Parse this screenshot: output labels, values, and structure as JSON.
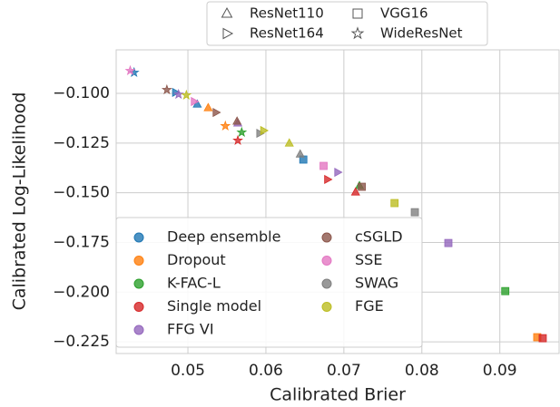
{
  "chart_data": {
    "type": "scatter",
    "xlabel": "Calibrated Brier",
    "ylabel": "Calibrated Log-Likelihood",
    "xlim": [
      0.0408,
      0.0976
    ],
    "ylim": [
      -0.2309,
      -0.0781
    ],
    "xticks": [
      0.05,
      0.06,
      0.07,
      0.08,
      0.09
    ],
    "yticks": [
      {
        "value": -0.1,
        "label": "−0.100"
      },
      {
        "value": -0.125,
        "label": "−0.125"
      },
      {
        "value": -0.15,
        "label": "−0.150"
      },
      {
        "value": -0.175,
        "label": "−0.175"
      },
      {
        "value": -0.2,
        "label": "−0.200"
      },
      {
        "value": -0.225,
        "label": "−0.225"
      }
    ],
    "grid": true,
    "legend": "lower left",
    "shape_legend": [
      {
        "name": "ResNet110",
        "shape": "triangle-up"
      },
      {
        "name": "VGG16",
        "shape": "square"
      },
      {
        "name": "ResNet164",
        "shape": "triangle-right"
      },
      {
        "name": "WideResNet",
        "shape": "star"
      }
    ],
    "series": [
      {
        "name": "Deep ensemble",
        "color": "#1f77b4",
        "x": [
          0.0431,
          0.0484,
          0.0512,
          0.0648
        ],
        "y": [
          -0.0895,
          -0.0995,
          -0.1055,
          -0.1333
        ],
        "shapes": [
          "star",
          "triangle-right",
          "triangle-up",
          "square"
        ]
      },
      {
        "name": "Dropout",
        "color": "#ff7f0e",
        "x": [
          0.0526,
          0.0548,
          0.0948
        ],
        "y": [
          -0.1073,
          -0.1164,
          -0.2227
        ],
        "shapes": [
          "triangle-up",
          "star",
          "square"
        ]
      },
      {
        "name": "K-FAC-L",
        "color": "#2ca02c",
        "x": [
          0.0569,
          0.072,
          0.0907
        ],
        "y": [
          -0.1196,
          -0.1465,
          -0.1995
        ],
        "shapes": [
          "star",
          "triangle-up",
          "square"
        ]
      },
      {
        "name": "Single model",
        "color": "#d62728",
        "x": [
          0.0564,
          0.0679,
          0.0715,
          0.0955
        ],
        "y": [
          -0.1237,
          -0.1433,
          -0.1497,
          -0.2232
        ],
        "shapes": [
          "star",
          "triangle-right",
          "triangle-up",
          "square"
        ]
      },
      {
        "name": "FFG VI",
        "color": "#9467bd",
        "x": [
          0.0488,
          0.0564,
          0.0692,
          0.0834
        ],
        "y": [
          -0.1005,
          -0.115,
          -0.1397,
          -0.1753
        ],
        "shapes": [
          "star",
          "triangle-up",
          "triangle-right",
          "square"
        ]
      },
      {
        "name": "cSGLD",
        "color": "#8c564b",
        "x": [
          0.0473,
          0.0536,
          0.0563,
          0.0723
        ],
        "y": [
          -0.0982,
          -0.1096,
          -0.1141,
          -0.147
        ],
        "shapes": [
          "star",
          "triangle-right",
          "triangle-up",
          "square"
        ]
      },
      {
        "name": "SSE",
        "color": "#e377c2",
        "x": [
          0.0426,
          0.0508,
          0.0674
        ],
        "y": [
          -0.0886,
          -0.1041,
          -0.1365
        ],
        "shapes": [
          "star",
          "triangle-right",
          "square"
        ]
      },
      {
        "name": "SWAG",
        "color": "#7f7f7f",
        "x": [
          0.0592,
          0.0644,
          0.0791
        ],
        "y": [
          -0.1201,
          -0.1306,
          -0.1598
        ],
        "shapes": [
          "triangle-right",
          "triangle-up",
          "square"
        ]
      },
      {
        "name": "FGE",
        "color": "#bcbd22",
        "x": [
          0.0498,
          0.0597,
          0.063,
          0.0765
        ],
        "y": [
          -0.1009,
          -0.1187,
          -0.1251,
          -0.1552
        ],
        "shapes": [
          "star",
          "triangle-right",
          "triangle-up",
          "square"
        ]
      }
    ]
  }
}
